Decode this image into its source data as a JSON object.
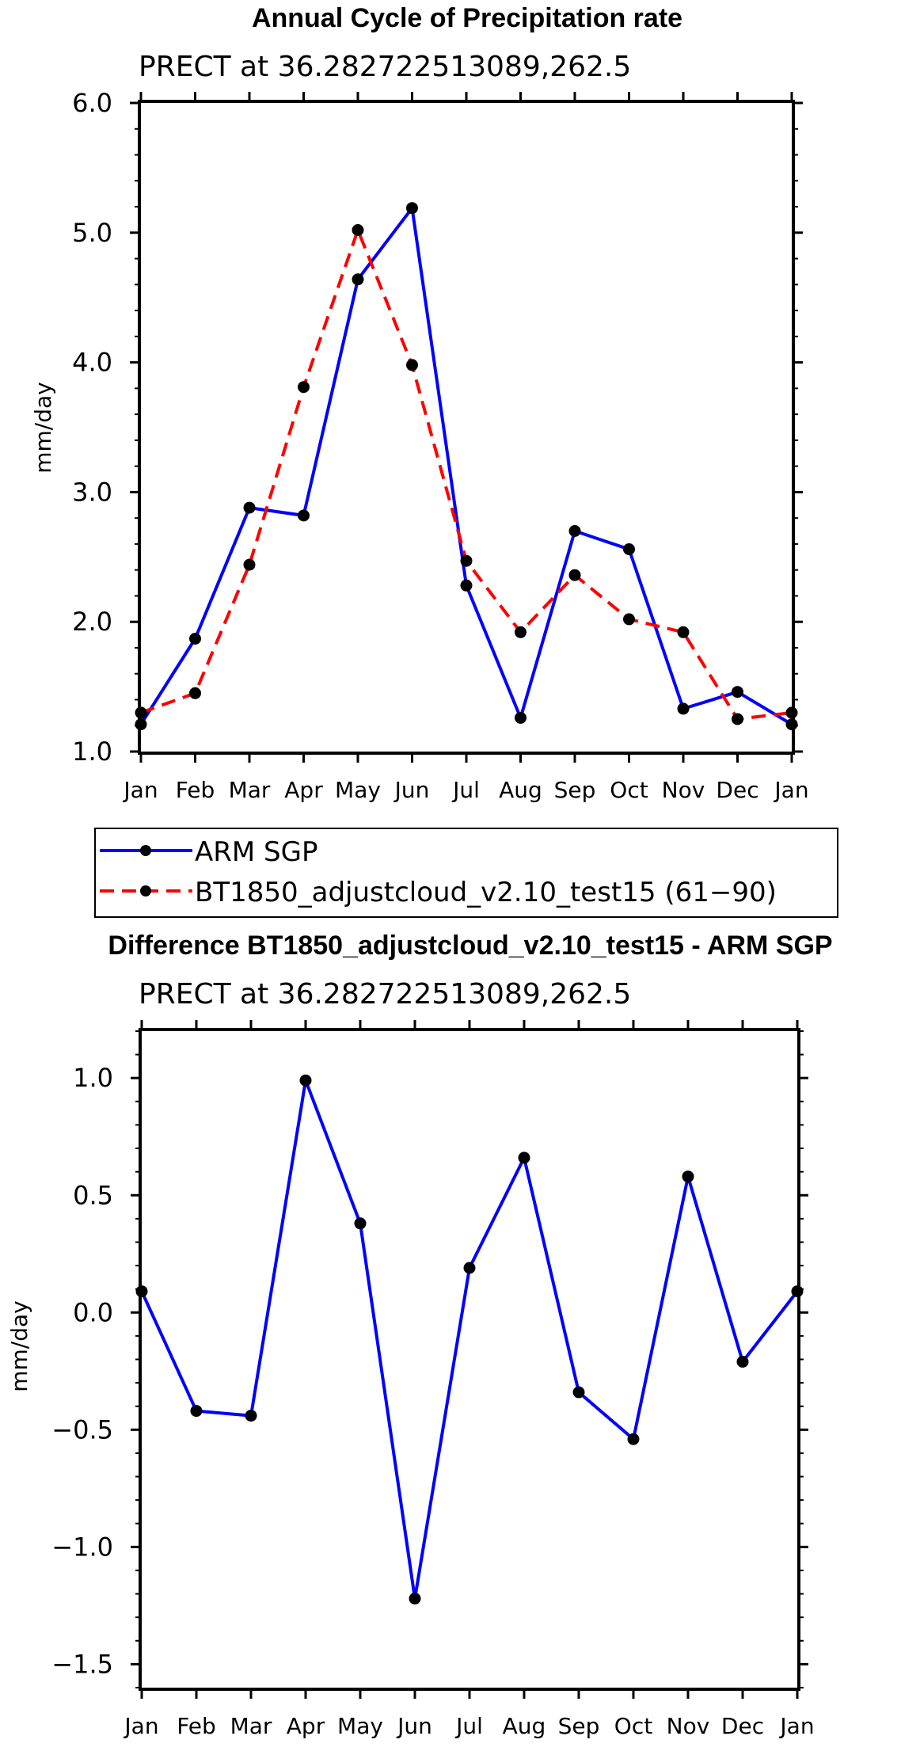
{
  "chart_data": [
    {
      "type": "line",
      "title": "Annual Cycle of Precipitation rate",
      "subtitle": "PRECT at 36.282722513089,262.5",
      "xlabel": "",
      "ylabel": "mm/day",
      "ylim": [
        1.0,
        6.0
      ],
      "y_major_ticks": [
        1.0,
        2.0,
        3.0,
        4.0,
        5.0,
        6.0
      ],
      "y_tick_labels": [
        "1.0",
        "2.0",
        "3.0",
        "4.0",
        "5.0",
        "6.0"
      ],
      "y_minor_step": 0.2,
      "categories": [
        "Jan",
        "Feb",
        "Mar",
        "Apr",
        "May",
        "Jun",
        "Jul",
        "Aug",
        "Sep",
        "Oct",
        "Nov",
        "Dec",
        "Jan"
      ],
      "grid": false,
      "series": [
        {
          "name": "ARM  SGP",
          "color": "#0000ff",
          "dash": "solid",
          "values": [
            1.21,
            1.87,
            2.88,
            2.82,
            4.64,
            5.19,
            2.28,
            1.26,
            2.7,
            2.56,
            1.33,
            1.46,
            1.21
          ]
        },
        {
          "name": "BT1850_adjustcloud_v2.10_test15 (61−90)",
          "color": "#ff0000",
          "dash": "dashed",
          "values": [
            1.3,
            1.45,
            2.44,
            3.81,
            5.02,
            3.98,
            2.47,
            1.92,
            2.36,
            2.02,
            1.92,
            1.25,
            1.3
          ]
        }
      ],
      "legend": {
        "position": "bottom",
        "entries": [
          "ARM  SGP",
          "BT1850_adjustcloud_v2.10_test15 (61−90)"
        ]
      }
    },
    {
      "type": "line",
      "title": "Difference BT1850_adjustcloud_v2.10_test15 - ARM SGP",
      "subtitle": "PRECT at 36.282722513089,262.5",
      "xlabel": "",
      "ylabel": "mm/day",
      "ylim": [
        -1.6,
        1.2
      ],
      "y_major_ticks": [
        -1.5,
        -1.0,
        -0.5,
        0.0,
        0.5,
        1.0
      ],
      "y_tick_labels": [
        "−1.5",
        "−1.0",
        "−0.5",
        "0.0",
        "0.5",
        "1.0"
      ],
      "y_minor_step": 0.1,
      "categories": [
        "Jan",
        "Feb",
        "Mar",
        "Apr",
        "May",
        "Jun",
        "Jul",
        "Aug",
        "Sep",
        "Oct",
        "Nov",
        "Dec",
        "Jan"
      ],
      "grid": false,
      "series": [
        {
          "name": "Difference",
          "color": "#0000ff",
          "dash": "solid",
          "values": [
            0.09,
            -0.42,
            -0.44,
            0.99,
            0.38,
            -1.22,
            0.19,
            0.66,
            -0.34,
            -0.54,
            0.58,
            -0.21,
            0.09
          ]
        }
      ]
    }
  ]
}
